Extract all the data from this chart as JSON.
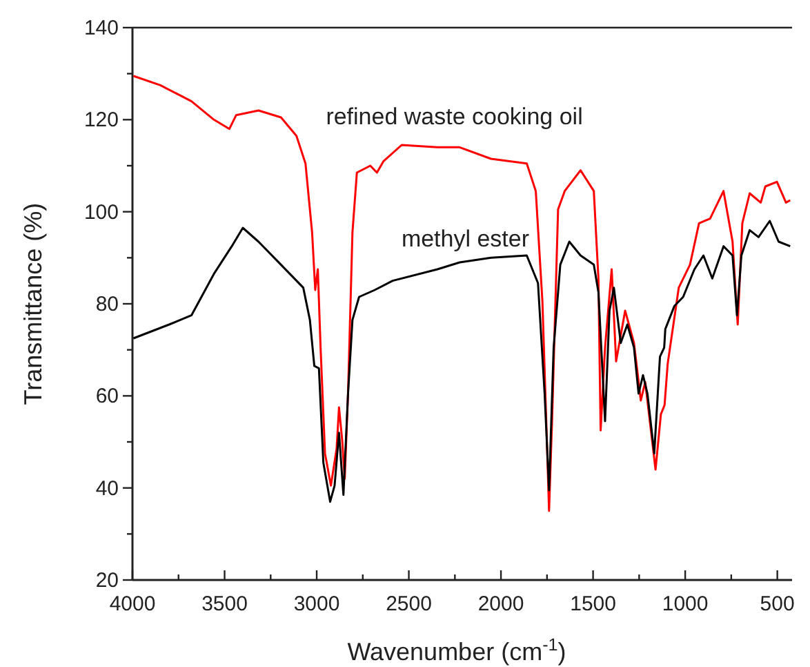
{
  "chart_data": {
    "type": "line",
    "xlabel": "Wavenumber (cm$^{-1}$)",
    "ylabel": "Transmittance (%)",
    "xlim": [
      4000,
      420
    ],
    "ylim": [
      20,
      140
    ],
    "xticks": [
      4000,
      {
        "value": 3750,
        "label": null
      },
      3500,
      {
        "value": 3250,
        "label": null
      },
      3000,
      {
        "value": 2750,
        "label": null
      },
      2500,
      {
        "value": 2250,
        "label": null
      },
      2000,
      {
        "value": 1750,
        "label": null
      },
      1500,
      {
        "value": 1250,
        "label": null
      },
      1000,
      {
        "value": 750,
        "label": null
      },
      500
    ],
    "yticks": [
      20,
      {
        "value": 30,
        "label": null
      },
      40,
      {
        "value": 50,
        "label": null
      },
      60,
      {
        "value": 70,
        "label": null
      },
      80,
      {
        "value": 90,
        "label": null
      },
      100,
      {
        "value": 110,
        "label": null
      },
      120,
      {
        "value": 130,
        "label": null
      },
      140
    ],
    "grid": false,
    "legend": false,
    "marker": "none",
    "line_style": "solid",
    "series": [
      {
        "name": "refined waste cooking oil",
        "color": "#ff0000",
        "x": [
          3995,
          3849,
          3680,
          3558,
          3474,
          3437,
          3316,
          3194,
          3110,
          3061,
          3025,
          3008,
          2994,
          2979,
          2955,
          2923,
          2892,
          2879,
          2862,
          2848,
          2830,
          2806,
          2782,
          2709,
          2673,
          2637,
          2539,
          2345,
          2224,
          2054,
          1860,
          1811,
          1775,
          1751,
          1739,
          1722,
          1690,
          1654,
          1568,
          1496,
          1471,
          1459,
          1435,
          1399,
          1375,
          1326,
          1278,
          1241,
          1217,
          1161,
          1132,
          1112,
          1095,
          1035,
          974,
          925,
          865,
          792,
          743,
          715,
          690,
          650,
          590,
          565,
          502,
          453,
          430
        ],
        "values": [
          129.5,
          127.5,
          124,
          120,
          118,
          121,
          122,
          120.5,
          116.5,
          110.5,
          95.5,
          83,
          87.5,
          70.5,
          47.5,
          40.5,
          48.5,
          57.5,
          50.5,
          42,
          60.5,
          95.5,
          108.5,
          110,
          108.5,
          111,
          114.5,
          114,
          114,
          111.5,
          110.5,
          104.5,
          80.5,
          50.5,
          35,
          55.5,
          100.5,
          104.5,
          109,
          104.5,
          85.5,
          52.5,
          70.5,
          87.5,
          67.5,
          78.5,
          71.5,
          59,
          63,
          44,
          56,
          58,
          67,
          83.5,
          88.5,
          97.5,
          98.5,
          104.5,
          93.5,
          75.5,
          97.5,
          104,
          102,
          105.5,
          106.5,
          102,
          102.5
        ]
      },
      {
        "name": "methyl ester",
        "color": "#000000",
        "x": [
          3995,
          3801,
          3680,
          3558,
          3461,
          3401,
          3316,
          3194,
          3073,
          3037,
          3013,
          2988,
          2964,
          2927,
          2903,
          2879,
          2855,
          2830,
          2806,
          2770,
          2685,
          2588,
          2345,
          2224,
          2054,
          1860,
          1799,
          1763,
          1739,
          1714,
          1678,
          1629,
          1568,
          1496,
          1471,
          1435,
          1411,
          1387,
          1350,
          1314,
          1278,
          1253,
          1229,
          1205,
          1168,
          1137,
          1114,
          1108,
          1059,
          1011,
          950,
          901,
          853,
          792,
          743,
          719,
          695,
          650,
          602,
          541,
          493,
          430
        ],
        "values": [
          72.5,
          75.5,
          77.5,
          86.5,
          92.5,
          96.5,
          93.5,
          88.5,
          83.5,
          76.5,
          66.5,
          66,
          45.5,
          37,
          40.5,
          52,
          38.5,
          60.5,
          76.5,
          81.5,
          83,
          85,
          87.5,
          89,
          90,
          90.5,
          84.5,
          60.5,
          39.5,
          70.5,
          88.5,
          93.5,
          90.5,
          88.5,
          82.5,
          54.5,
          78.5,
          83.5,
          71.5,
          75.5,
          70.5,
          60.5,
          64.5,
          60.5,
          47.5,
          68.5,
          70.5,
          74.5,
          79.5,
          81.5,
          87.5,
          90.5,
          85.5,
          92.5,
          90.5,
          77.5,
          90.5,
          96,
          94.5,
          98,
          93.5,
          92.5
        ]
      }
    ]
  }
}
